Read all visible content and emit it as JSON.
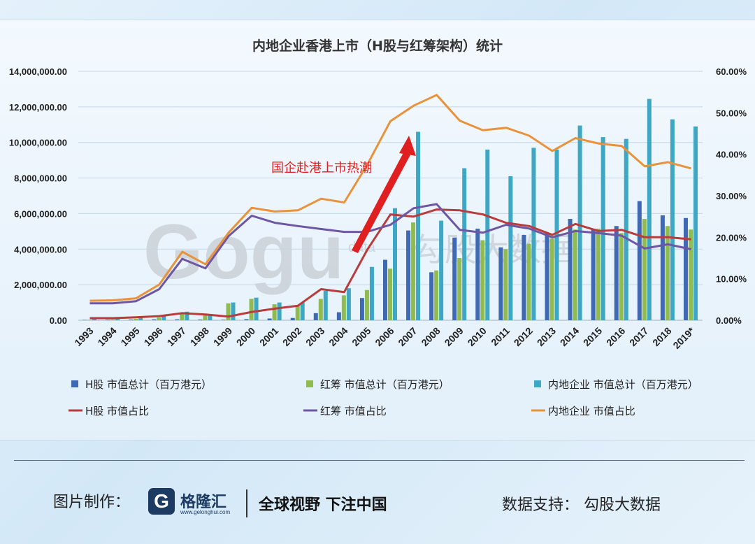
{
  "chart_data": {
    "type": "bar+line",
    "title": "内地企业香港上市（H股与红筹架构）统计",
    "categories": [
      "1993",
      "1994",
      "1995",
      "1996",
      "1997",
      "1998",
      "1999",
      "2000",
      "2001",
      "2002",
      "2003",
      "2004",
      "2005",
      "2006",
      "2007",
      "2008",
      "2009",
      "2010",
      "2011",
      "2012",
      "2013",
      "2014",
      "2015",
      "2016",
      "2017",
      "2018",
      "2019*"
    ],
    "left_axis": {
      "min": 0,
      "max": 14000000,
      "ticks": [
        "0.00",
        "2,000,000.00",
        "4,000,000.00",
        "6,000,000.00",
        "8,000,000.00",
        "10,000,000.00",
        "12,000,000.00",
        "14,000,000.00"
      ]
    },
    "right_axis": {
      "min": 0,
      "max": 60,
      "ticks": [
        "0.00%",
        "10.00%",
        "20.00%",
        "30.00%",
        "40.00%",
        "50.00%",
        "60.00%"
      ]
    },
    "bar_series": [
      {
        "name": "H股 市值总计（百万港元）",
        "color": "#3f69b3",
        "values": [
          20000,
          30000,
          40000,
          50000,
          50000,
          40000,
          30000,
          60000,
          100000,
          130000,
          400000,
          450000,
          1250000,
          3400000,
          5050000,
          2700000,
          4650000,
          5150000,
          4100000,
          4800000,
          4900000,
          5700000,
          5150000,
          5300000,
          6700000,
          5900000,
          5750000
        ]
      },
      {
        "name": "红筹 市值总计（百万港元）",
        "color": "#8fbb50",
        "values": [
          30000,
          50000,
          80000,
          150000,
          400000,
          350000,
          950000,
          1200000,
          900000,
          850000,
          1200000,
          1400000,
          1700000,
          2900000,
          5500000,
          2800000,
          3500000,
          4500000,
          4000000,
          4300000,
          4600000,
          5100000,
          5150000,
          4900000,
          5700000,
          5300000,
          5100000
        ]
      },
      {
        "name": "内地企业 市值总计（百万港元）",
        "color": "#3da7c4",
        "values": [
          100000,
          120000,
          150000,
          230000,
          480000,
          350000,
          1000000,
          1270000,
          1000000,
          1000000,
          1650000,
          1800000,
          3000000,
          6300000,
          10600000,
          5600000,
          8550000,
          9600000,
          8100000,
          9700000,
          9600000,
          10950000,
          10300000,
          10200000,
          12450000,
          11300000,
          10900000
        ]
      }
    ],
    "line_series": [
      {
        "name": "H股 市值占比",
        "color": "#b83c3c",
        "values": [
          0.5,
          0.5,
          0.7,
          1.0,
          1.7,
          1.4,
          0.9,
          2.0,
          2.8,
          3.5,
          7.5,
          6.8,
          17.0,
          25.5,
          25.0,
          26.7,
          26.5,
          25.5,
          23.5,
          22.7,
          20.6,
          23.2,
          21.5,
          21.8,
          20.0,
          20.0,
          19.5
        ]
      },
      {
        "name": "红筹 市值占比",
        "color": "#6f56a2",
        "values": [
          4.1,
          4.1,
          4.6,
          7.5,
          14.8,
          12.5,
          20.3,
          25.2,
          23.5,
          22.7,
          22.0,
          21.3,
          21.3,
          23.0,
          27.0,
          28.0,
          21.8,
          21.1,
          23.0,
          22.1,
          20.0,
          21.5,
          21.0,
          20.4,
          17.3,
          18.3,
          17.1
        ]
      },
      {
        "name": "内地企业 市值占比",
        "color": "#e8923b",
        "values": [
          4.7,
          4.8,
          5.3,
          8.6,
          16.5,
          13.5,
          21.1,
          27.1,
          26.2,
          26.5,
          29.3,
          28.4,
          37.5,
          48.0,
          51.7,
          54.3,
          48.1,
          45.8,
          46.4,
          44.5,
          40.8,
          43.9,
          42.6,
          42.0,
          37.1,
          38.1,
          36.6
        ]
      }
    ],
    "annotation": {
      "text": "国企赴港上市热潮",
      "color": "#e02020"
    },
    "legend_position": "bottom"
  },
  "watermark": {
    "text": "Gogu",
    "subtext": "data",
    "cn": "勾股大数据"
  },
  "footer": {
    "credit": "图片制作：",
    "brand": "格隆汇",
    "brand_url": "www.gelonghui.com",
    "slogan": "全球视野 下注中国",
    "source": "数据支持：  勾股大数据"
  }
}
